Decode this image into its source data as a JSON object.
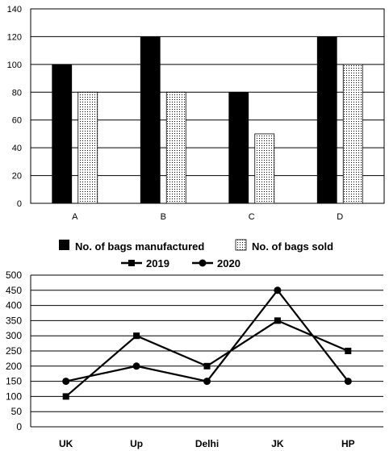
{
  "chart_data": [
    {
      "type": "bar",
      "categories": [
        "A",
        "B",
        "C",
        "D"
      ],
      "series": [
        {
          "name": "No. of bags manufactured",
          "values": [
            100,
            120,
            80,
            120
          ],
          "color": "#000000",
          "pattern": "solid"
        },
        {
          "name": "No. of bags sold",
          "values": [
            80,
            80,
            50,
            100
          ],
          "color": "#ffffff",
          "pattern": "dotted"
        }
      ],
      "ylim": [
        0,
        140
      ],
      "yticks": [
        "0",
        "20",
        "40",
        "60",
        "80",
        "100",
        "120",
        "140"
      ],
      "grid": true,
      "legend": "bottom"
    },
    {
      "type": "line",
      "categories": [
        "UK",
        "Up",
        "Delhi",
        "JK",
        "HP"
      ],
      "series": [
        {
          "name": "2019",
          "values": [
            100,
            300,
            200,
            350,
            250
          ],
          "marker": "square"
        },
        {
          "name": "2020",
          "values": [
            150,
            200,
            150,
            450,
            150
          ],
          "marker": "circle"
        }
      ],
      "ylim": [
        0,
        500
      ],
      "yticks": [
        "0",
        "50",
        "100",
        "150",
        "200",
        "250",
        "300",
        "350",
        "400",
        "450",
        "500"
      ],
      "grid": true,
      "legend": "top"
    }
  ]
}
